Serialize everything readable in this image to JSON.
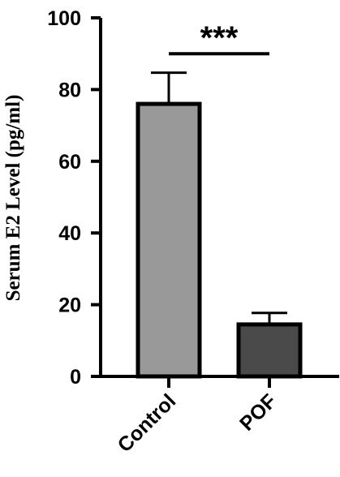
{
  "chart_data": {
    "type": "bar",
    "categories": [
      "Control",
      "POF"
    ],
    "values": [
      76,
      14.5
    ],
    "error": [
      8.7,
      3.2
    ],
    "colors": [
      "#999999",
      "#4a4a4a"
    ],
    "title": "",
    "xlabel": "",
    "ylabel": "Serum E2 Level (pg/ml)",
    "ylim": [
      0,
      100
    ],
    "yticks": [
      0,
      20,
      40,
      60,
      80,
      100
    ],
    "grid": false,
    "annotation": {
      "text": "***",
      "between": [
        "Control",
        "POF"
      ],
      "y": 90
    }
  }
}
